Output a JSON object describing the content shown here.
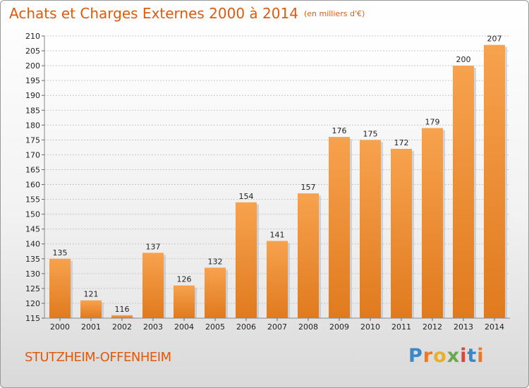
{
  "header": {
    "title": "Achats et Charges Externes 2000 à 2014",
    "unit": "(en milliers d'€)"
  },
  "commune": "STUTZHEIM-OFFENHEIM",
  "logo": {
    "letters": [
      "P",
      "r",
      "o",
      "x",
      "i",
      "t",
      "i"
    ]
  },
  "colors": {
    "accent": "#e05a0c",
    "bar_light": "#f7a24e",
    "bar_dark": "#e07a1e"
  },
  "chart_data": {
    "type": "bar",
    "title": "Achats et Charges Externes 2000 à 2014",
    "subtitle": "(en milliers d'€)",
    "xlabel": "",
    "ylabel": "",
    "categories": [
      "2000",
      "2001",
      "2002",
      "2003",
      "2004",
      "2005",
      "2006",
      "2007",
      "2008",
      "2009",
      "2010",
      "2011",
      "2012",
      "2013",
      "2014"
    ],
    "values": [
      135,
      121,
      116,
      137,
      126,
      132,
      154,
      141,
      157,
      176,
      175,
      172,
      179,
      200,
      207
    ],
    "ylim": [
      115,
      210
    ],
    "yticks": [
      115,
      120,
      125,
      130,
      135,
      140,
      145,
      150,
      155,
      160,
      165,
      170,
      175,
      180,
      185,
      190,
      195,
      200,
      205,
      210
    ],
    "grid": true
  }
}
